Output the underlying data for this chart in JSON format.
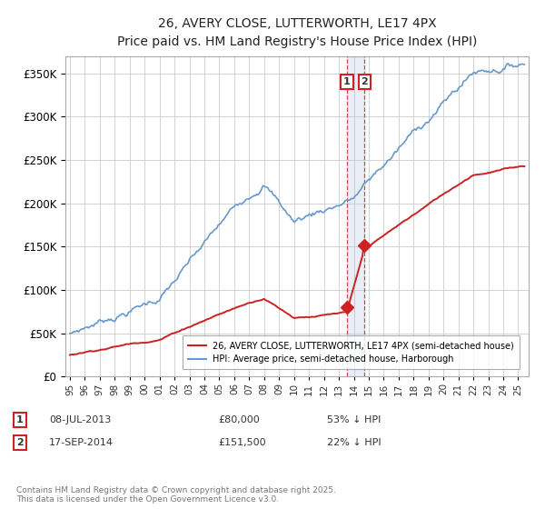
{
  "title": "26, AVERY CLOSE, LUTTERWORTH, LE17 4PX",
  "subtitle": "Price paid vs. HM Land Registry's House Price Index (HPI)",
  "legend_line1": "26, AVERY CLOSE, LUTTERWORTH, LE17 4PX (semi-detached house)",
  "legend_line2": "HPI: Average price, semi-detached house, Harborough",
  "transaction1_date": "08-JUL-2013",
  "transaction1_price": 80000,
  "transaction1_label": "1",
  "transaction1_note": "53% ↓ HPI",
  "transaction2_date": "17-SEP-2014",
  "transaction2_price": 151500,
  "transaction2_label": "2",
  "transaction2_note": "22% ↓ HPI",
  "footer": "Contains HM Land Registry data © Crown copyright and database right 2025.\nThis data is licensed under the Open Government Licence v3.0.",
  "hpi_color": "#6699cc",
  "price_color": "#cc2222",
  "transaction_color": "#cc2222",
  "vline_color": "#cc2222",
  "band_color": "#aabbdd",
  "grid_color": "#cccccc",
  "ylim_min": 0,
  "ylim_max": 370000,
  "background_color": "#ffffff"
}
